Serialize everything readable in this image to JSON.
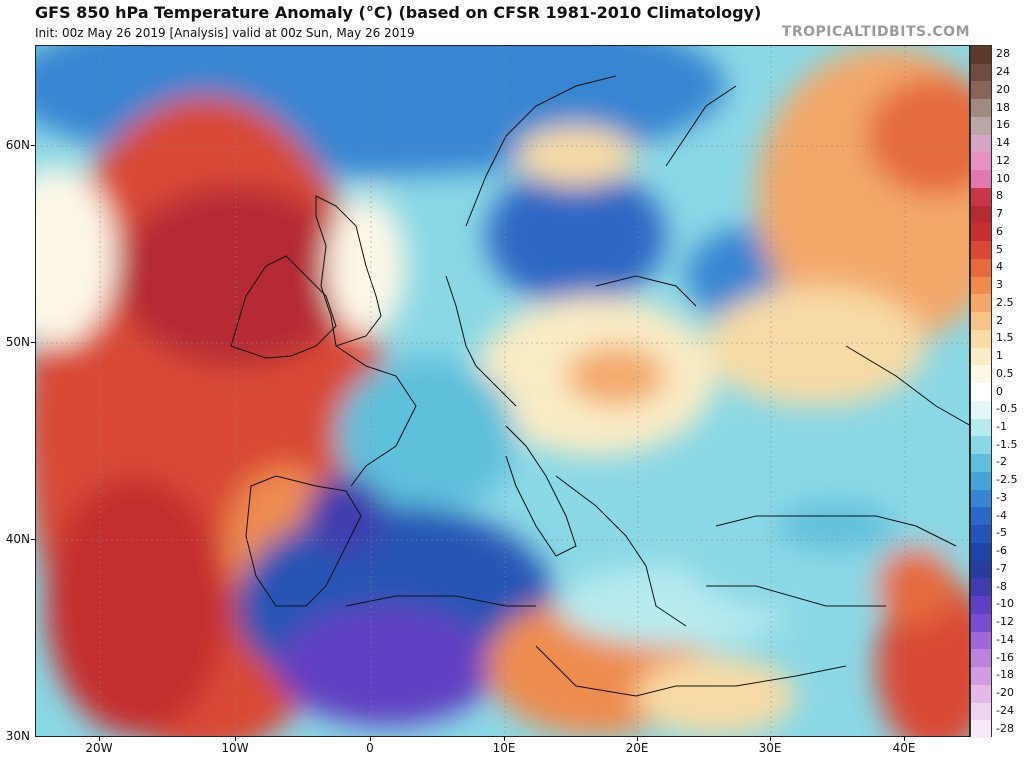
{
  "header": {
    "title": "GFS 850 hPa Temperature Anomaly (°C) (based on CFSR 1981-2010 Climatology)",
    "subtitle": "Init: 00z May 26 2019   [Analysis]   valid at 00z Sun, May 26 2019",
    "brand": "TROPICALTIDBITS.COM"
  },
  "map": {
    "lat_labels": [
      "60N",
      "50N",
      "40N",
      "30N"
    ],
    "lon_labels": [
      "20W",
      "10W",
      "0",
      "10E",
      "20E",
      "30E",
      "40E"
    ]
  },
  "colorbar": {
    "labels": [
      "28",
      "24",
      "20",
      "18",
      "16",
      "14",
      "12",
      "10",
      "8",
      "7",
      "6",
      "5",
      "4",
      "3",
      "2.5",
      "2",
      "1.5",
      "1",
      "0.5",
      "0",
      "-0.5",
      "-1",
      "-1.5",
      "-2",
      "-2.5",
      "-3",
      "-4",
      "-5",
      "-6",
      "-7",
      "-8",
      "-10",
      "-12",
      "-14",
      "-16",
      "-18",
      "-20",
      "-24",
      "-28"
    ],
    "colors": [
      "#5a3a28",
      "#6e4d3f",
      "#86665a",
      "#a08a82",
      "#bba5a6",
      "#d7a6c6",
      "#e691c4",
      "#e079b1",
      "#c7364a",
      "#b52a35",
      "#c52f2f",
      "#d94a36",
      "#e56a3e",
      "#ee8c4f",
      "#f3a86a",
      "#f6c487",
      "#f8dba6",
      "#faecc5",
      "#fdf7e7",
      "#ffffff",
      "#e3f6f8",
      "#b7ebef",
      "#8ad8e6",
      "#5fc0dc",
      "#44a4d6",
      "#3785d2",
      "#2d68c5",
      "#2654b5",
      "#1f44a3",
      "#273d9e",
      "#3f3cae",
      "#6040c2",
      "#7a4cd0",
      "#9f67d8",
      "#bd83dc",
      "#d39ce1",
      "#e4b8e8",
      "#efd4f0",
      "#f7eaf6"
    ]
  }
}
